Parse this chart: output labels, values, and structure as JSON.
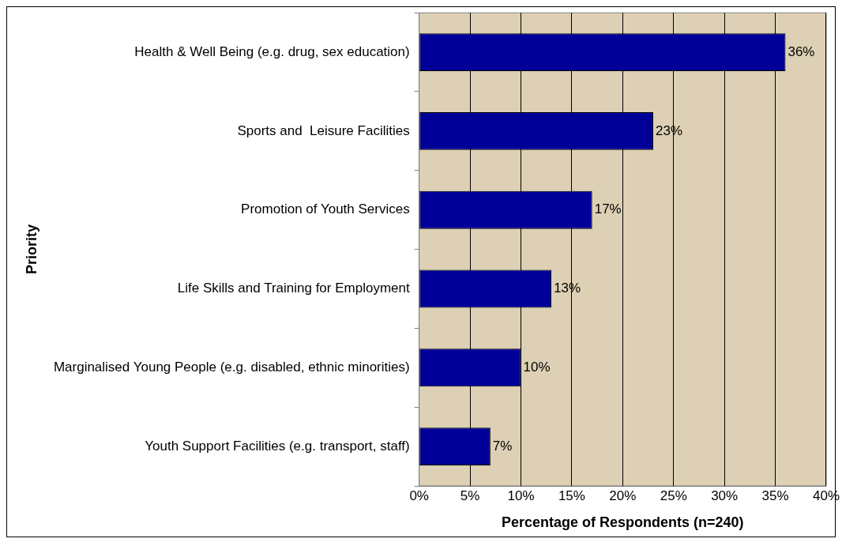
{
  "chart_data": {
    "type": "bar",
    "orientation": "horizontal",
    "xlabel": "Percentage of Respondents (n=240)",
    "ylabel": "Priority",
    "categories": [
      "Health & Well Being (e.g. drug, sex education)",
      "Sports and  Leisure Facilities",
      "Promotion of Youth Services",
      "Life Skills and Training for Employment",
      "Marginalised Young People (e.g. disabled, ethnic minorities)",
      "Youth Support Facilities (e.g. transport, staff)"
    ],
    "values": [
      36,
      23,
      17,
      13,
      10,
      7
    ],
    "color": "#000099",
    "value_labels": [
      "36%",
      "23%",
      "17%",
      "13%",
      "10%",
      "7%"
    ],
    "xlim": [
      0,
      40
    ],
    "xticks": [
      {
        "value": 0,
        "label": "0%"
      },
      {
        "value": 5,
        "label": "5%"
      },
      {
        "value": 10,
        "label": "10%"
      },
      {
        "value": 15,
        "label": "15%"
      },
      {
        "value": 20,
        "label": "20%"
      },
      {
        "value": 25,
        "label": "25%"
      },
      {
        "value": 30,
        "label": "30%"
      },
      {
        "value": 35,
        "label": "35%"
      },
      {
        "value": 40,
        "label": "40%"
      }
    ],
    "grid": "x",
    "legend": false
  }
}
